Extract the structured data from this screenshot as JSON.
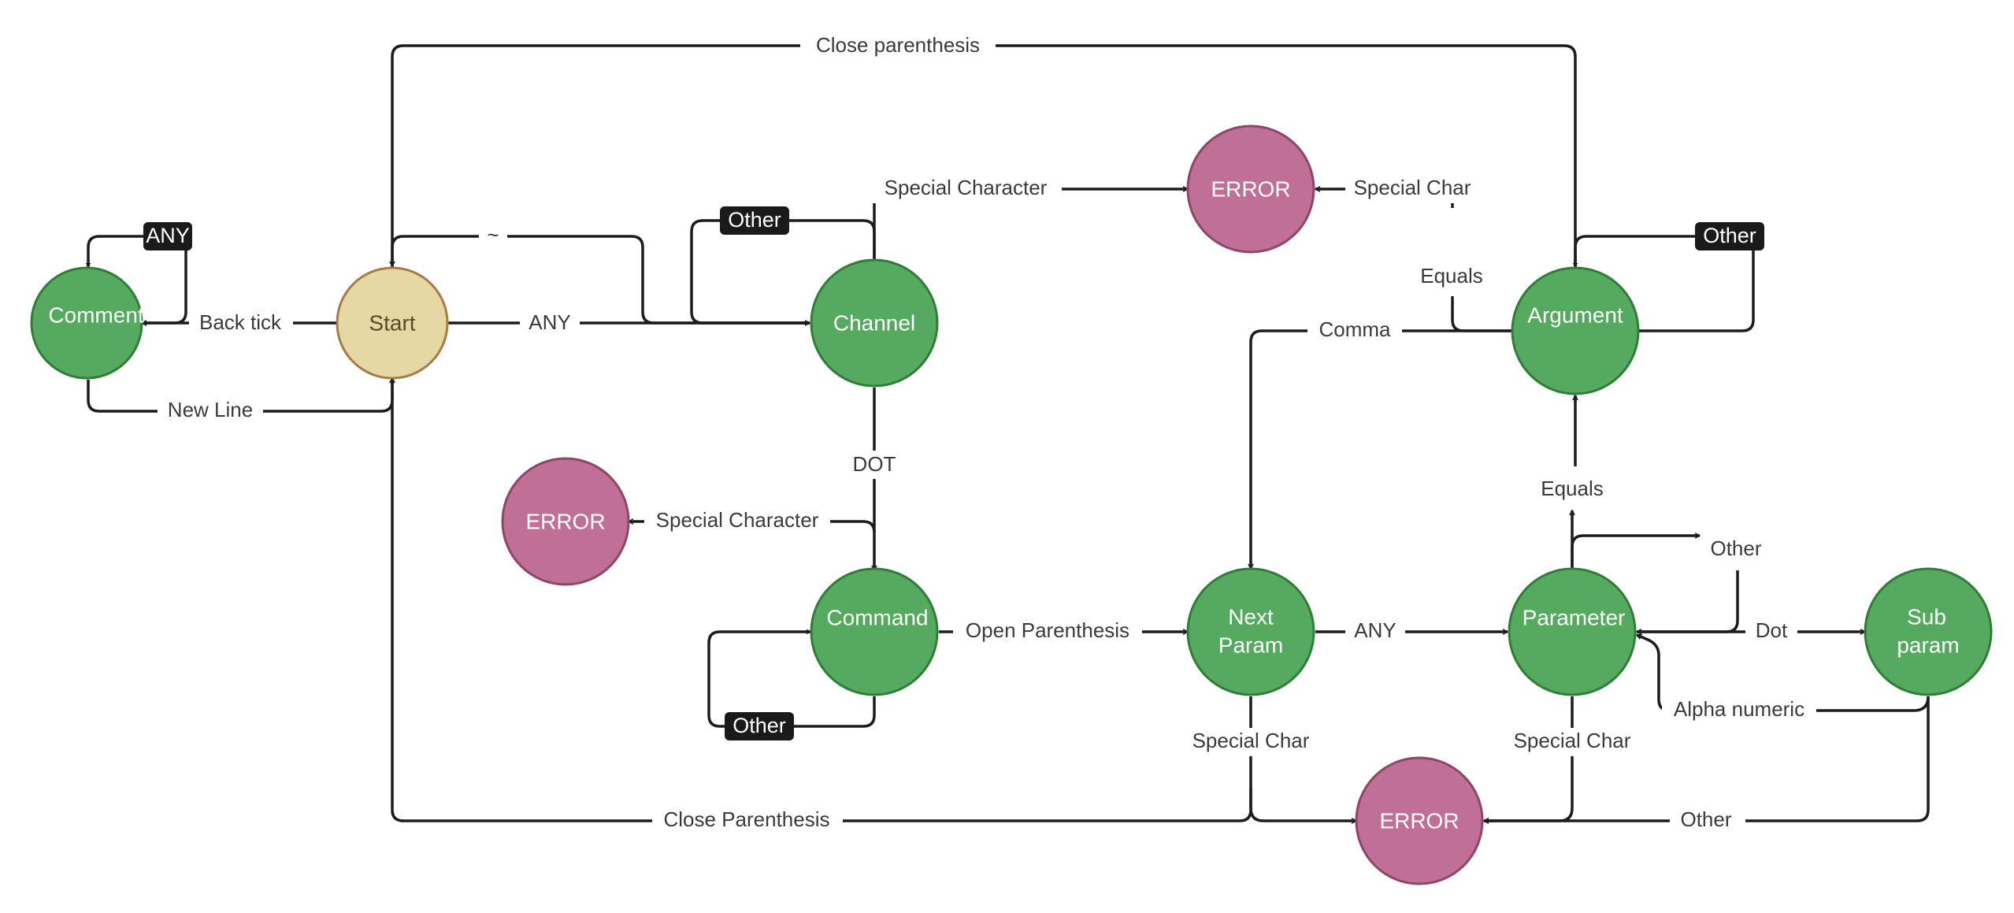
{
  "colors": {
    "start_fill": "#e6d8a4",
    "start_stroke": "#a97a45",
    "state_fill": "#55aa5f",
    "state_stroke": "#2f7d38",
    "error_fill": "#c06f96",
    "error_stroke": "#8e4568",
    "tag_fill": "#1a1a1a",
    "edge": "#1c1c1c",
    "label": "#3a3a3a"
  },
  "nodes": {
    "comment": "Comment",
    "start": "Start",
    "channel": "Channel",
    "command": "Command",
    "error_top": "ERROR",
    "error_mid": "ERROR",
    "error_bottom": "ERROR",
    "argument": "Argument",
    "next_param": [
      "Next",
      "Param"
    ],
    "parameter": "Parameter",
    "sub_param": [
      "Sub",
      "param"
    ]
  },
  "edges": {
    "close_parenthesis_top": "Close parenthesis",
    "any_comment_loop": "ANY",
    "back_tick": "Back tick",
    "new_line": "New Line",
    "tilde": "~",
    "any_start_channel": "ANY",
    "other_channel_loop": "Other",
    "special_character_channel": "Special Character",
    "dot": "DOT",
    "special_character_command": "Special Character",
    "other_command_loop": "Other",
    "open_parenthesis": "Open Parenthesis",
    "special_char_argument": "Special Char",
    "equals_argument": "Equals",
    "comma": "Comma",
    "other_argument_loop": "Other",
    "equals_parameter": "Equals",
    "other_parameter": "Other",
    "any_next_param": "ANY",
    "dot_sub_param": "Dot",
    "alpha_numeric": "Alpha numeric",
    "special_char_next_param": "Special Char",
    "special_char_parameter": "Special Char",
    "close_parenthesis_bottom": "Close Parenthesis",
    "other_sub_param": "Other"
  }
}
